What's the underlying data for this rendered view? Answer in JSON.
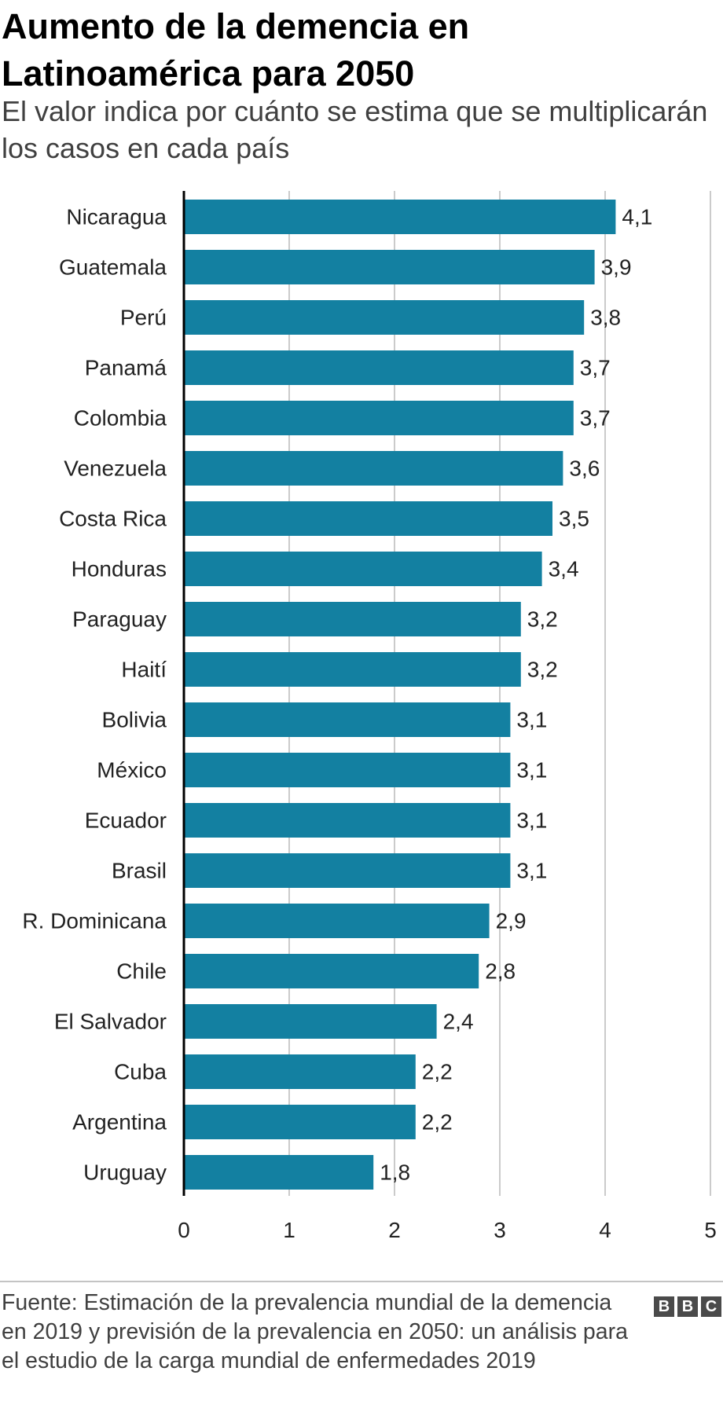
{
  "header": {
    "title": "Aumento de la demencia en Latinoamérica para 2050",
    "subtitle": "El valor indica por cuánto se estima que se multiplicarán los casos en cada país"
  },
  "footer": {
    "source": "Fuente: Estimación de la prevalencia mundial de la demencia en 2019 y previsión de la prevalencia en 2050: un análisis para el estudio de la carga mundial de enfermedades 2019",
    "logo_letters": [
      "B",
      "B",
      "C"
    ]
  },
  "colors": {
    "bar": "#1380a1",
    "grid": "#cbcbcb",
    "axis": "#000000",
    "text": "#222222"
  },
  "chart_data": {
    "type": "bar",
    "orientation": "horizontal",
    "categories": [
      "Nicaragua",
      "Guatemala",
      "Perú",
      "Panamá",
      "Colombia",
      "Venezuela",
      "Costa Rica",
      "Honduras",
      "Paraguay",
      "Haití",
      "Bolivia",
      "México",
      "Ecuador",
      "Brasil",
      "R. Dominicana",
      "Chile",
      "El Salvador",
      "Cuba",
      "Argentina",
      "Uruguay"
    ],
    "values": [
      4.1,
      3.9,
      3.8,
      3.7,
      3.7,
      3.6,
      3.5,
      3.4,
      3.2,
      3.2,
      3.1,
      3.1,
      3.1,
      3.1,
      2.9,
      2.8,
      2.4,
      2.2,
      2.2,
      1.8
    ],
    "value_labels": [
      "4,1",
      "3,9",
      "3,8",
      "3,7",
      "3,7",
      "3,6",
      "3,5",
      "3,4",
      "3,2",
      "3,2",
      "3,1",
      "3,1",
      "3,1",
      "3,1",
      "2,9",
      "2,8",
      "2,4",
      "2,2",
      "2,2",
      "1,8"
    ],
    "xlim": [
      0,
      5
    ],
    "xticks": [
      0,
      1,
      2,
      3,
      4,
      5
    ],
    "xtick_labels": [
      "0",
      "1",
      "2",
      "3",
      "4",
      "5"
    ],
    "grid": true,
    "legend": "none"
  }
}
